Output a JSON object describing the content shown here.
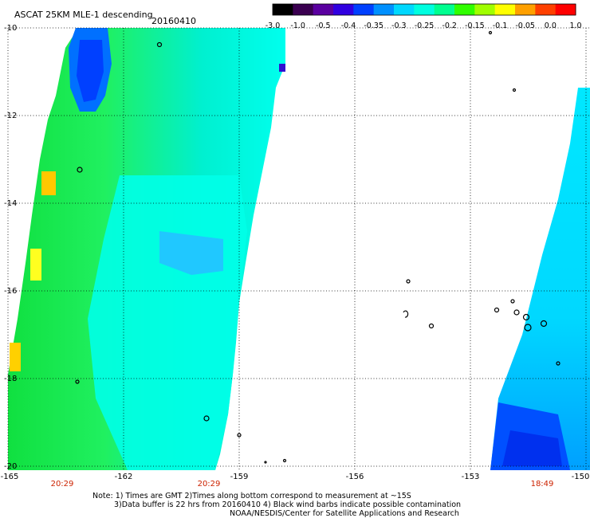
{
  "header": {
    "title": "ASCAT 25KM MLE-1 descending",
    "date": "20160410"
  },
  "colorbar": {
    "labels": [
      "-3.0",
      "-1.0",
      "-0.5",
      "-0.4",
      "-0.35",
      "-0.3",
      "-0.25",
      "-0.2",
      "-0.15",
      "-0.1",
      "-0.05",
      "0.0",
      "1.0"
    ],
    "colors": [
      "#000000",
      "#3a0050",
      "#5a00a0",
      "#3000e0",
      "#0040ff",
      "#0090ff",
      "#00d8ff",
      "#00ffe0",
      "#00ff90",
      "#30ff00",
      "#a0ff00",
      "#ffff00",
      "#ffa000",
      "#ff4000",
      "#ff0000"
    ]
  },
  "axes": {
    "lat_labels": [
      "-10",
      "-12",
      "-14",
      "-16",
      "-18",
      "-20"
    ],
    "lon_labels": [
      "-165",
      "-162",
      "-159",
      "-156",
      "-153",
      "-150"
    ]
  },
  "times": [
    "20:29",
    "20:29",
    "18:49"
  ],
  "notes": [
    "Note: 1) Times are GMT 2)Times along bottom correspond to measurement at ~15S",
    "3)Data buffer is 22 hrs from 20160410 4) Black wind barbs indicate possible contamination",
    "NOAA/NESDIS/Center for Satellite Applications and Research"
  ],
  "colors": {
    "background": "#ffffff",
    "grid": "#000000",
    "time_label": "#cc2200"
  }
}
